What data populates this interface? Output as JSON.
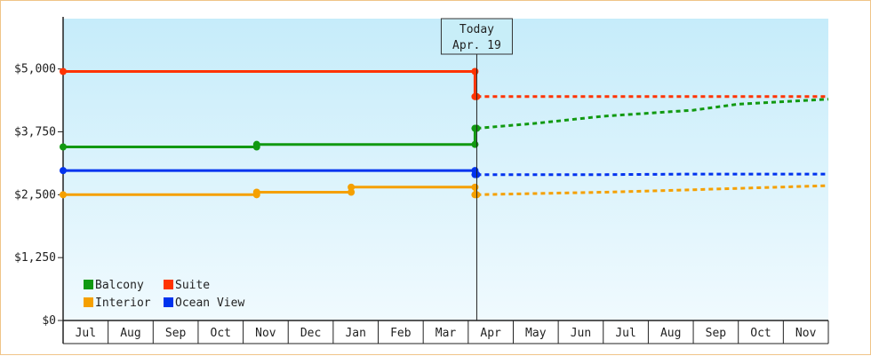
{
  "chart_data": {
    "type": "line",
    "y_axis": {
      "min": 0,
      "max": 6000,
      "ticks": [
        {
          "value": 0,
          "label": "$0"
        },
        {
          "value": 1250,
          "label": "$1,250"
        },
        {
          "value": 2500,
          "label": "$2,500"
        },
        {
          "value": 3750,
          "label": "$3,750"
        },
        {
          "value": 5000,
          "label": "$5,000"
        }
      ]
    },
    "x_axis": {
      "months": [
        "Jul",
        "Aug",
        "Sep",
        "Oct",
        "Nov",
        "Dec",
        "Jan",
        "Feb",
        "Mar",
        "Apr",
        "May",
        "Jun",
        "Jul",
        "Aug",
        "Sep",
        "Oct",
        "Nov"
      ]
    },
    "today": {
      "line1": "Today",
      "line2": "Apr. 19",
      "month_index": 9.19
    },
    "legend": [
      {
        "name": "Balcony",
        "color": "#119911"
      },
      {
        "name": "Suite",
        "color": "#ff3300"
      },
      {
        "name": "Interior",
        "color": "#f5a000"
      },
      {
        "name": "Ocean View",
        "color": "#0033ee"
      }
    ],
    "series": [
      {
        "name": "Suite",
        "color": "#ff3300",
        "history": [
          [
            0,
            4950
          ],
          [
            9.15,
            4950
          ],
          [
            9.15,
            4450
          ],
          [
            9.19,
            4450
          ]
        ],
        "markers": [
          [
            0,
            4950
          ],
          [
            9.15,
            4950
          ],
          [
            9.15,
            4450
          ],
          [
            9.19,
            4450
          ]
        ],
        "forecast": [
          [
            9.19,
            4450
          ],
          [
            12,
            4450
          ],
          [
            13,
            4450
          ],
          [
            16,
            4450
          ],
          [
            17,
            4450
          ]
        ]
      },
      {
        "name": "Balcony",
        "color": "#119911",
        "history": [
          [
            0,
            3450
          ],
          [
            4.3,
            3450
          ],
          [
            4.3,
            3500
          ],
          [
            9.15,
            3500
          ],
          [
            9.15,
            3820
          ],
          [
            9.19,
            3820
          ]
        ],
        "markers": [
          [
            0,
            3450
          ],
          [
            4.3,
            3450
          ],
          [
            4.3,
            3500
          ],
          [
            9.15,
            3500
          ],
          [
            9.15,
            3820
          ],
          [
            9.19,
            3820
          ]
        ],
        "forecast": [
          [
            9.19,
            3820
          ],
          [
            10.5,
            3920
          ],
          [
            12,
            4060
          ],
          [
            14,
            4180
          ],
          [
            15,
            4300
          ],
          [
            17,
            4400
          ]
        ]
      },
      {
        "name": "Ocean View",
        "color": "#0033ee",
        "history": [
          [
            0,
            2980
          ],
          [
            9.15,
            2980
          ],
          [
            9.15,
            2900
          ],
          [
            9.19,
            2900
          ]
        ],
        "markers": [
          [
            0,
            2980
          ],
          [
            9.15,
            2980
          ],
          [
            9.15,
            2900
          ],
          [
            9.19,
            2900
          ]
        ],
        "forecast": [
          [
            9.19,
            2900
          ],
          [
            12,
            2900
          ],
          [
            14,
            2910
          ],
          [
            17,
            2910
          ]
        ]
      },
      {
        "name": "Interior",
        "color": "#f5a000",
        "history": [
          [
            0,
            2500
          ],
          [
            4.3,
            2500
          ],
          [
            4.3,
            2550
          ],
          [
            6.4,
            2550
          ],
          [
            6.4,
            2650
          ],
          [
            9.15,
            2650
          ],
          [
            9.15,
            2500
          ],
          [
            9.19,
            2500
          ]
        ],
        "markers": [
          [
            0,
            2500
          ],
          [
            4.3,
            2500
          ],
          [
            4.3,
            2550
          ],
          [
            6.4,
            2550
          ],
          [
            6.4,
            2650
          ],
          [
            9.15,
            2650
          ],
          [
            9.15,
            2500
          ],
          [
            9.19,
            2500
          ]
        ],
        "forecast": [
          [
            9.19,
            2500
          ],
          [
            12,
            2550
          ],
          [
            14,
            2600
          ],
          [
            17,
            2680
          ]
        ]
      }
    ]
  }
}
